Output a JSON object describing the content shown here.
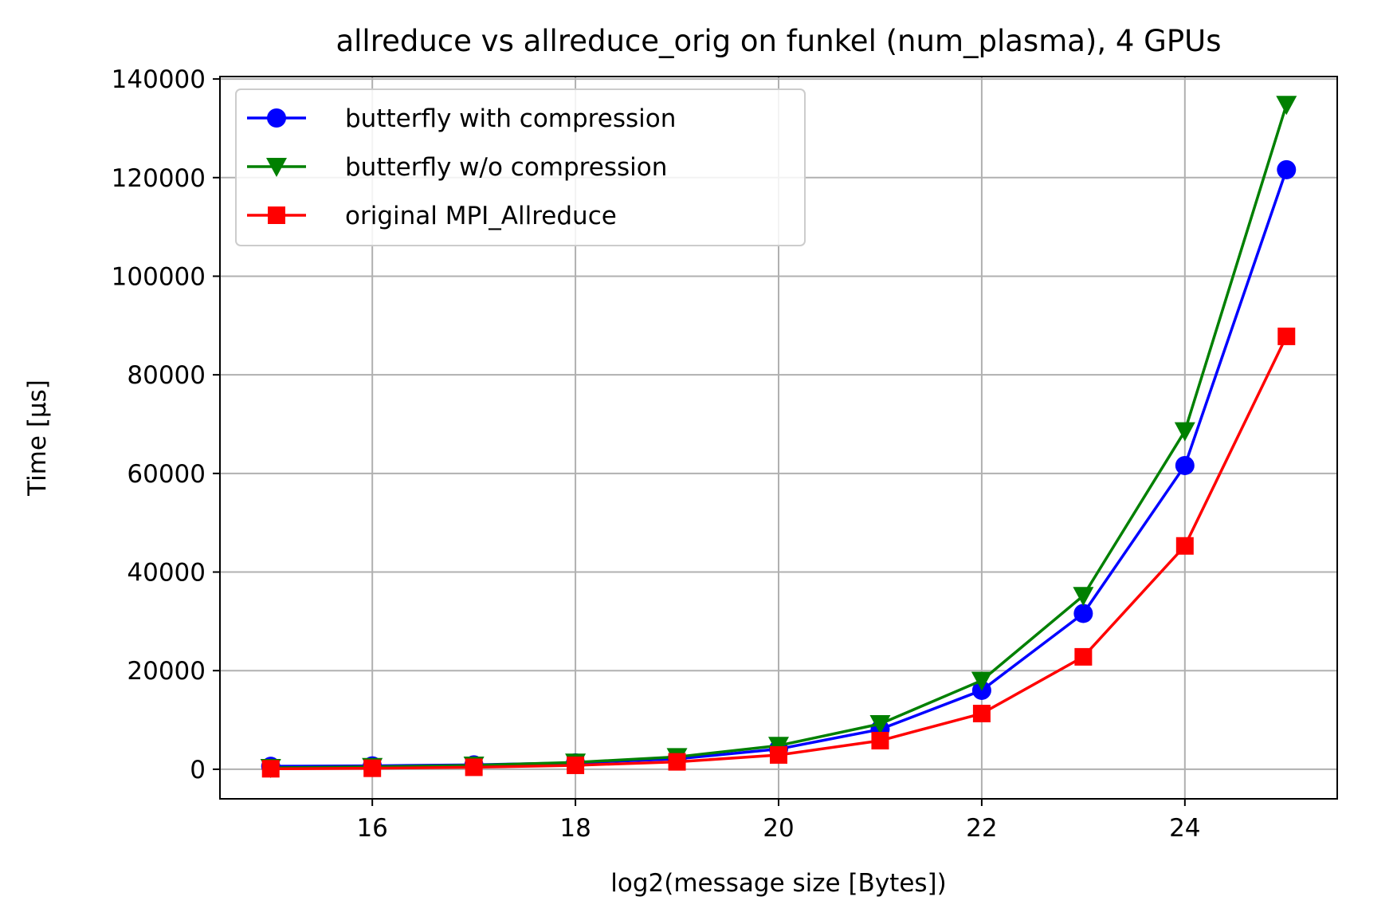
{
  "chart_data": {
    "type": "line",
    "title": "allreduce vs allreduce_orig on funkel (num_plasma), 4 GPUs",
    "xlabel": "log2(message size [Bytes])",
    "ylabel": "Time [µs]",
    "x": [
      15,
      16,
      17,
      18,
      19,
      20,
      21,
      22,
      23,
      24,
      25
    ],
    "xlim": [
      14.5,
      25.5
    ],
    "ylim": [
      -6000,
      140500
    ],
    "xticks": [
      16,
      18,
      20,
      22,
      24
    ],
    "yticks": [
      0,
      20000,
      40000,
      60000,
      80000,
      100000,
      120000,
      140000
    ],
    "grid": true,
    "legend_position": "upper-left",
    "series": [
      {
        "name": "butterfly with compression",
        "color": "#0000ff",
        "marker": "circle",
        "values": [
          600,
          700,
          900,
          1300,
          2100,
          4100,
          8100,
          16000,
          31600,
          61600,
          121600
        ]
      },
      {
        "name": "butterfly w/o compression",
        "color": "#008000",
        "marker": "triangle-down",
        "values": [
          300,
          500,
          800,
          1400,
          2500,
          4800,
          9200,
          18000,
          35200,
          68600,
          134800
        ]
      },
      {
        "name": "original MPI_Allreduce",
        "color": "#ff0000",
        "marker": "square",
        "values": [
          100,
          200,
          400,
          800,
          1500,
          2900,
          5800,
          11300,
          22800,
          45300,
          87800
        ]
      }
    ]
  }
}
